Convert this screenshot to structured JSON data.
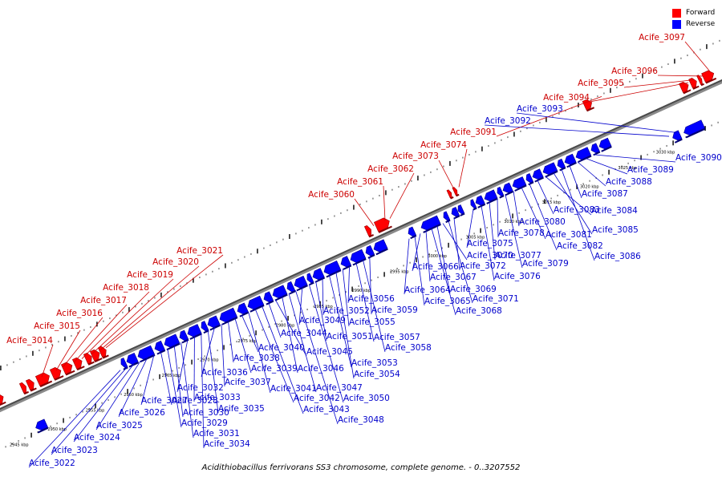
{
  "legend": {
    "forward_label": "Forward",
    "forward_color": "#ff0000",
    "reverse_label": "Reverse",
    "reverse_color": "#0000ff"
  },
  "caption": "Acidithiobacillus ferrivorans SS3 chromosome, complete genome. - 0..3207552",
  "kbp_ticks": [
    "2945 kbp",
    "2950 kbp",
    "2955 kbp",
    "2960 kbp",
    "2965 kbp",
    "2970 kbp",
    "2975 kbp",
    "2980 kbp",
    "2985 kbp",
    "2990 kbp",
    "2995 kbp",
    "3000 kbp",
    "3005 kbp",
    "3010 kbp",
    "3015 kbp",
    "3020 kbp",
    "3025 kbp",
    "3030 kbp"
  ],
  "forward_genes": [
    "Acife_3014",
    "Acife_3015",
    "Acife_3016",
    "Acife_3017",
    "Acife_3018",
    "Acife_3019",
    "Acife_3020",
    "Acife_3021",
    "Acife_3060",
    "Acife_3061",
    "Acife_3062",
    "Acife_3073",
    "Acife_3074",
    "Acife_3091",
    "Acife_3094",
    "Acife_3095",
    "Acife_3096",
    "Acife_3097"
  ],
  "reverse_genes": [
    "Acife_3022",
    "Acife_3023",
    "Acife_3024",
    "Acife_3025",
    "Acife_3026",
    "Acife_3027",
    "Acife_3028",
    "Acife_3029",
    "Acife_3030",
    "Acife_3031",
    "Acife_3032",
    "Acife_3033",
    "Acife_3034",
    "Acife_3035",
    "Acife_3036",
    "Acife_3037",
    "Acife_3038",
    "Acife_3039",
    "Acife_3040",
    "Acife_3041",
    "Acife_3042",
    "Acife_3043",
    "Acife_3044",
    "Acife_3045",
    "Acife_3046",
    "Acife_3047",
    "Acife_3048",
    "Acife_3049",
    "Acife_3050",
    "Acife_3051",
    "Acife_3052",
    "Acife_3053",
    "Acife_3054",
    "Acife_3055",
    "Acife_3056",
    "Acife_3057",
    "Acife_3058",
    "Acife_3059",
    "Acife_3064",
    "Acife_3065",
    "Acife_3066",
    "Acife_3067",
    "Acife_3068",
    "Acife_3069",
    "Acife_3070",
    "Acife_3071",
    "Acife_3072",
    "Acife_3075",
    "Acife_3076",
    "Acife_3077",
    "Acife_3078",
    "Acife_3079",
    "Acife_3080",
    "Acife_3081",
    "Acife_3082",
    "Acife_3083",
    "Acife_3084",
    "Acife_3085",
    "Acife_3086",
    "Acife_3087",
    "Acife_3088",
    "Acife_3089",
    "Acife_3090",
    "Acife_3092",
    "Acife_3093"
  ]
}
